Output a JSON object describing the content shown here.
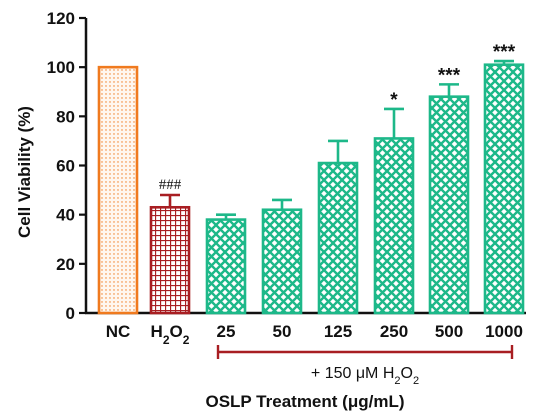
{
  "chart_data": {
    "type": "bar",
    "ylabel": "Cell Viability (%)",
    "xlabel": "OSLP Treatment (μg/mL)",
    "ylim": [
      0,
      120
    ],
    "y_ticks": [
      "0",
      "20",
      "40",
      "60",
      "80",
      "100",
      "120"
    ],
    "grid": false,
    "categories": [
      "NC",
      "H2O2",
      "25",
      "50",
      "125",
      "250",
      "500",
      "1000"
    ],
    "category_labels": [
      {
        "main": "NC",
        "sub": ""
      },
      {
        "main": "H",
        "sub": "2",
        "tail": "O",
        "tail_sub": "2"
      },
      {
        "main": "25"
      },
      {
        "main": "50"
      },
      {
        "main": "125"
      },
      {
        "main": "250"
      },
      {
        "main": "500"
      },
      {
        "main": "1000"
      }
    ],
    "values": [
      100,
      43,
      38,
      42,
      61,
      71,
      88,
      101
    ],
    "errors": [
      0,
      5,
      2,
      4,
      9,
      12,
      5,
      1.5
    ],
    "annotations": [
      "",
      "###",
      "",
      "",
      "",
      "*",
      "***",
      "***"
    ],
    "bar_styles": [
      {
        "color": "#f07a1e",
        "pattern": "dots"
      },
      {
        "color": "#a81e22",
        "pattern": "grid"
      },
      {
        "color": "#1db889",
        "pattern": "cross"
      },
      {
        "color": "#1db889",
        "pattern": "cross"
      },
      {
        "color": "#1db889",
        "pattern": "cross"
      },
      {
        "color": "#1db889",
        "pattern": "cross"
      },
      {
        "color": "#1db889",
        "pattern": "cross"
      },
      {
        "color": "#1db889",
        "pattern": "cross"
      }
    ],
    "bracket": {
      "label": "+ 150 μM H",
      "sub": "2",
      "tail": "O",
      "tail_sub": "2",
      "from": "25",
      "to": "1000",
      "color": "#a81e22"
    }
  }
}
